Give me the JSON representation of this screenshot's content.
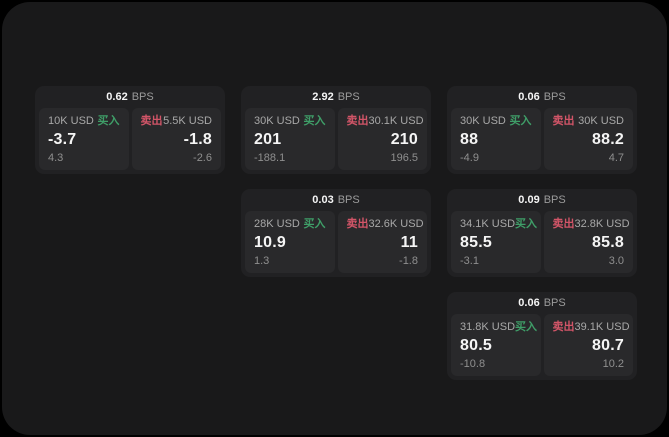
{
  "labels": {
    "bps_unit": "BPS",
    "buy": "买入",
    "sell": "卖出"
  },
  "colors": {
    "page_background": "#19191a",
    "card_background": "#212123",
    "panel_background": "#29292b",
    "buy_green": "#3f9e68",
    "sell_red": "#d25568"
  },
  "cards": [
    {
      "bps": "0.62",
      "buy": {
        "volume": "10K USD",
        "price": "-3.7",
        "change": "4.3"
      },
      "sell": {
        "volume": "5.5K USD",
        "price": "-1.8",
        "change": "-2.6"
      }
    },
    {
      "bps": "2.92",
      "buy": {
        "volume": "30K USD",
        "price": "201",
        "change": "-188.1"
      },
      "sell": {
        "volume": "30.1K USD",
        "price": "210",
        "change": "196.5"
      }
    },
    {
      "bps": "0.06",
      "buy": {
        "volume": "30K USD",
        "price": "88",
        "change": "-4.9"
      },
      "sell": {
        "volume": "30K USD",
        "price": "88.2",
        "change": "4.7"
      }
    },
    {
      "bps": "0.03",
      "buy": {
        "volume": "28K USD",
        "price": "10.9",
        "change": "1.3"
      },
      "sell": {
        "volume": "32.6K USD",
        "price": "11",
        "change": "-1.8"
      }
    },
    {
      "bps": "0.09",
      "buy": {
        "volume": "34.1K USD",
        "price": "85.5",
        "change": "-3.1"
      },
      "sell": {
        "volume": "32.8K USD",
        "price": "85.8",
        "change": "3.0"
      }
    },
    {
      "bps": "0.06",
      "buy": {
        "volume": "31.8K USD",
        "price": "80.5",
        "change": "-10.8"
      },
      "sell": {
        "volume": "39.1K USD",
        "price": "80.7",
        "change": "10.2"
      }
    }
  ]
}
